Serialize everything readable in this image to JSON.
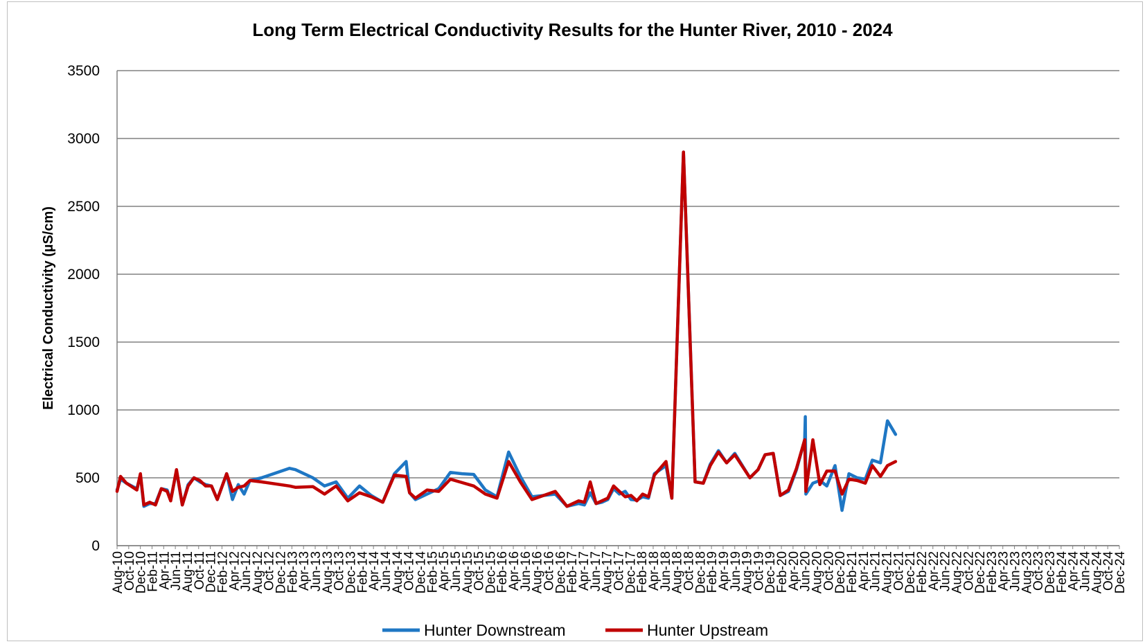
{
  "chart_data": {
    "type": "line",
    "title": "Long Term Electrical Conductivity Results for the Hunter River, 2010 - 2024",
    "xlabel": "",
    "ylabel": "Electrical Conductivity (µS/cm)",
    "ylim": [
      0,
      3500
    ],
    "yticks": [
      "0",
      "500",
      "1000",
      "1500",
      "2000",
      "2500",
      "3000",
      "3500"
    ],
    "grid": "horizontal",
    "legend": "bottom",
    "x_tick_labels": [
      "Aug-10",
      "Oct-10",
      "Dec-10",
      "Feb-11",
      "Apr-11",
      "Jun-11",
      "Aug-11",
      "Oct-11",
      "Dec-11",
      "Feb-12",
      "Apr-12",
      "Jun-12",
      "Aug-12",
      "Oct-12",
      "Dec-12",
      "Feb-13",
      "Apr-13",
      "Jun-13",
      "Aug-13",
      "Oct-13",
      "Dec-13",
      "Feb-14",
      "Apr-14",
      "Jun-14",
      "Aug-14",
      "Oct-14",
      "Dec-14",
      "Feb-15",
      "Apr-15",
      "Jun-15",
      "Aug-15",
      "Oct-15",
      "Dec-15",
      "Feb-16",
      "Apr-16",
      "Jun-16",
      "Aug-16",
      "Oct-16",
      "Dec-16",
      "Feb-17",
      "Apr-17",
      "Jun-17",
      "Aug-17",
      "Oct-17",
      "Dec-17",
      "Feb-18",
      "Apr-18",
      "Jun-18",
      "Aug-18",
      "Oct-18",
      "Dec-18",
      "Feb-19",
      "Apr-19",
      "Jun-19",
      "Aug-19",
      "Oct-19",
      "Dec-19",
      "Feb-20",
      "Apr-20",
      "Jun-20",
      "Aug-20",
      "Oct-20",
      "Dec-20",
      "Feb-21",
      "Apr-21",
      "Jun-21",
      "Aug-21",
      "Oct-21",
      "Dec-21",
      "Feb-22",
      "Apr-22",
      "Jun-22",
      "Aug-22",
      "Oct-22",
      "Dec-22",
      "Feb-23",
      "Apr-23",
      "Jun-23",
      "Aug-23",
      "Oct-23",
      "Dec-23",
      "Feb-24",
      "Apr-24",
      "Jun-24",
      "Aug-24",
      "Oct-24",
      "Dec-24"
    ],
    "series": [
      {
        "name": "Hunter Downstream",
        "color": "#1f77c4",
        "points": [
          [
            0,
            410
          ],
          [
            0.3,
            490
          ],
          [
            0.8,
            460
          ],
          [
            1.7,
            420
          ],
          [
            2.0,
            520
          ],
          [
            2.3,
            290
          ],
          [
            2.8,
            310
          ],
          [
            3.3,
            310
          ],
          [
            3.8,
            420
          ],
          [
            4.3,
            410
          ],
          [
            4.6,
            340
          ],
          [
            5.1,
            550
          ],
          [
            5.6,
            300
          ],
          [
            6.1,
            450
          ],
          [
            6.6,
            500
          ],
          [
            7.1,
            470
          ],
          [
            7.6,
            450
          ],
          [
            8.1,
            440
          ],
          [
            8.6,
            340
          ],
          [
            9.4,
            530
          ],
          [
            9.9,
            340
          ],
          [
            10.4,
            450
          ],
          [
            10.9,
            380
          ],
          [
            11.4,
            480
          ],
          [
            12.4,
            500
          ],
          [
            14.8,
            570
          ],
          [
            15.3,
            560
          ],
          [
            16.8,
            500
          ],
          [
            17.8,
            440
          ],
          [
            18.8,
            470
          ],
          [
            19.8,
            350
          ],
          [
            20.8,
            440
          ],
          [
            21.8,
            370
          ],
          [
            22.8,
            320
          ],
          [
            23.8,
            530
          ],
          [
            24.8,
            620
          ],
          [
            25.1,
            390
          ],
          [
            25.6,
            340
          ],
          [
            26.6,
            380
          ],
          [
            27.6,
            420
          ],
          [
            28.6,
            540
          ],
          [
            29.6,
            530
          ],
          [
            30.6,
            525
          ],
          [
            31.6,
            410
          ],
          [
            32.6,
            360
          ],
          [
            33.6,
            690
          ],
          [
            34.6,
            510
          ],
          [
            35.6,
            360
          ],
          [
            36.6,
            370
          ],
          [
            37.6,
            380
          ],
          [
            38.6,
            290
          ],
          [
            39.6,
            310
          ],
          [
            40.1,
            300
          ],
          [
            40.6,
            390
          ],
          [
            41.1,
            310
          ],
          [
            41.6,
            320
          ],
          [
            42.1,
            340
          ],
          [
            42.6,
            420
          ],
          [
            43.1,
            380
          ],
          [
            43.6,
            400
          ],
          [
            44.1,
            340
          ],
          [
            44.6,
            335
          ],
          [
            45.1,
            360
          ],
          [
            45.6,
            350
          ],
          [
            46.1,
            530
          ],
          [
            47.1,
            590
          ],
          [
            47.6,
            350
          ],
          [
            48.6,
            2900
          ],
          [
            49.6,
            470
          ],
          [
            50.3,
            460
          ],
          [
            50.9,
            600
          ],
          [
            51.6,
            700
          ],
          [
            52.3,
            610
          ],
          [
            53.0,
            680
          ],
          [
            54.3,
            500
          ],
          [
            55.0,
            560
          ],
          [
            55.6,
            670
          ],
          [
            56.3,
            680
          ],
          [
            56.9,
            370
          ],
          [
            57.6,
            400
          ],
          [
            58.3,
            560
          ],
          [
            59.0,
            780
          ],
          [
            59.05,
            950
          ],
          [
            59.1,
            380
          ],
          [
            59.7,
            460
          ],
          [
            60.3,
            480
          ],
          [
            60.9,
            440
          ],
          [
            61.6,
            590
          ],
          [
            62.2,
            260
          ],
          [
            62.8,
            530
          ],
          [
            63.5,
            500
          ],
          [
            64.2,
            490
          ],
          [
            64.8,
            630
          ],
          [
            65.5,
            610
          ],
          [
            66.1,
            920
          ],
          [
            66.8,
            820
          ]
        ]
      },
      {
        "name": "Hunter Upstream",
        "color": "#c00000",
        "points": [
          [
            0,
            400
          ],
          [
            0.3,
            510
          ],
          [
            0.8,
            460
          ],
          [
            1.7,
            410
          ],
          [
            2.0,
            530
          ],
          [
            2.3,
            300
          ],
          [
            2.8,
            320
          ],
          [
            3.3,
            300
          ],
          [
            3.8,
            420
          ],
          [
            4.3,
            400
          ],
          [
            4.6,
            330
          ],
          [
            5.1,
            560
          ],
          [
            5.6,
            300
          ],
          [
            6.1,
            440
          ],
          [
            6.6,
            500
          ],
          [
            7.1,
            480
          ],
          [
            7.6,
            440
          ],
          [
            8.1,
            440
          ],
          [
            8.6,
            340
          ],
          [
            9.4,
            530
          ],
          [
            9.9,
            400
          ],
          [
            10.4,
            430
          ],
          [
            10.9,
            440
          ],
          [
            11.4,
            480
          ],
          [
            12.4,
            470
          ],
          [
            14.8,
            440
          ],
          [
            15.3,
            430
          ],
          [
            16.8,
            435
          ],
          [
            17.8,
            380
          ],
          [
            18.8,
            440
          ],
          [
            19.8,
            330
          ],
          [
            20.8,
            390
          ],
          [
            21.8,
            360
          ],
          [
            22.8,
            320
          ],
          [
            23.8,
            520
          ],
          [
            24.8,
            510
          ],
          [
            25.1,
            390
          ],
          [
            25.6,
            350
          ],
          [
            26.6,
            410
          ],
          [
            27.6,
            400
          ],
          [
            28.6,
            490
          ],
          [
            29.6,
            465
          ],
          [
            30.6,
            440
          ],
          [
            31.6,
            380
          ],
          [
            32.6,
            350
          ],
          [
            33.6,
            620
          ],
          [
            34.6,
            470
          ],
          [
            35.6,
            340
          ],
          [
            36.6,
            370
          ],
          [
            37.6,
            400
          ],
          [
            38.6,
            290
          ],
          [
            39.6,
            330
          ],
          [
            40.1,
            320
          ],
          [
            40.6,
            470
          ],
          [
            41.1,
            310
          ],
          [
            41.6,
            330
          ],
          [
            42.1,
            350
          ],
          [
            42.6,
            440
          ],
          [
            43.1,
            400
          ],
          [
            43.6,
            360
          ],
          [
            44.1,
            370
          ],
          [
            44.6,
            330
          ],
          [
            45.1,
            380
          ],
          [
            45.6,
            360
          ],
          [
            46.1,
            520
          ],
          [
            47.1,
            620
          ],
          [
            47.6,
            350
          ],
          [
            48.6,
            2900
          ],
          [
            49.6,
            470
          ],
          [
            50.3,
            460
          ],
          [
            50.9,
            590
          ],
          [
            51.6,
            690
          ],
          [
            52.3,
            610
          ],
          [
            53.0,
            670
          ],
          [
            54.3,
            500
          ],
          [
            55.0,
            560
          ],
          [
            55.6,
            670
          ],
          [
            56.3,
            680
          ],
          [
            56.9,
            370
          ],
          [
            57.6,
            410
          ],
          [
            58.3,
            570
          ],
          [
            59.0,
            780
          ],
          [
            59.1,
            400
          ],
          [
            59.7,
            780
          ],
          [
            60.3,
            450
          ],
          [
            60.9,
            550
          ],
          [
            61.6,
            550
          ],
          [
            62.2,
            380
          ],
          [
            62.8,
            490
          ],
          [
            63.5,
            480
          ],
          [
            64.2,
            460
          ],
          [
            64.8,
            590
          ],
          [
            65.5,
            510
          ],
          [
            66.1,
            590
          ],
          [
            66.8,
            620
          ]
        ]
      }
    ]
  }
}
